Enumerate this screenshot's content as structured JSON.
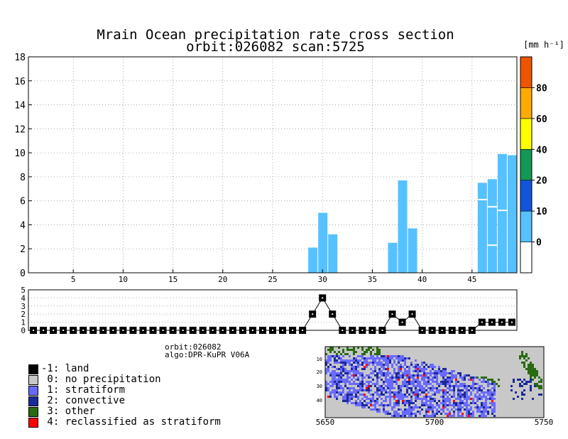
{
  "title": {
    "line1": "Mrain Ocean precipitation rate cross section",
    "line2": "orbit:026082    scan:5725"
  },
  "units_label": "[mm h⁻¹]",
  "chart_data": [
    {
      "id": "rain_cross_section",
      "type": "bar",
      "xlim": [
        1,
        49
      ],
      "ylim": [
        0,
        18
      ],
      "yticks": [
        0,
        2,
        4,
        6,
        8,
        10,
        12,
        14,
        16,
        18
      ],
      "xticks": [
        5,
        10,
        15,
        20,
        25,
        30,
        35,
        40,
        45
      ],
      "grid": true,
      "bars": [
        {
          "ray": 29,
          "height": 2.1
        },
        {
          "ray": 30,
          "height": 5.0
        },
        {
          "ray": 31,
          "height": 3.2
        },
        {
          "ray": 37,
          "height": 2.5
        },
        {
          "ray": 38,
          "height": 7.7
        },
        {
          "ray": 39,
          "height": 3.7
        },
        {
          "ray": 46,
          "height": 7.5
        },
        {
          "ray": 47,
          "height": 7.8
        },
        {
          "ray": 48,
          "height": 9.9
        },
        {
          "ray": 49,
          "height": 9.8
        }
      ],
      "bar_color": "#55c2ff"
    },
    {
      "id": "rain_type_profile",
      "type": "line",
      "ylim": [
        0,
        5
      ],
      "yticks": [
        0,
        1,
        2,
        3,
        4,
        5
      ],
      "rays": [
        1,
        2,
        3,
        4,
        5,
        6,
        7,
        8,
        9,
        10,
        11,
        12,
        13,
        14,
        15,
        16,
        17,
        18,
        19,
        20,
        21,
        22,
        23,
        24,
        25,
        26,
        27,
        28,
        29,
        30,
        31,
        32,
        33,
        34,
        35,
        36,
        37,
        38,
        39,
        40,
        41,
        42,
        43,
        44,
        45,
        46,
        47,
        48,
        49
      ],
      "values": [
        0,
        0,
        0,
        0,
        0,
        0,
        0,
        0,
        0,
        0,
        0,
        0,
        0,
        0,
        0,
        0,
        0,
        0,
        0,
        0,
        0,
        0,
        0,
        0,
        0,
        0,
        0,
        0,
        2,
        4,
        2,
        0,
        0,
        0,
        0,
        0,
        2,
        1,
        2,
        0,
        0,
        0,
        0,
        0,
        0,
        1,
        1,
        1,
        1
      ]
    },
    {
      "id": "color_scale",
      "type": "colorbar",
      "labels": [
        "0",
        "10",
        "20",
        "40",
        "60",
        "80"
      ],
      "colors": [
        "#ffffff",
        "#55c2ff",
        "#1155dd",
        "#119955",
        "#ffff00",
        "#ffaa00",
        "#ee5500"
      ]
    }
  ],
  "info": {
    "orbit": "orbit:026082",
    "algo": "algo:DPR-KuPR V06A"
  },
  "legend": [
    {
      "label": "-1: land",
      "color": "#000000"
    },
    {
      "label": " 0: no precipitation",
      "color": "#c8c8c8"
    },
    {
      "label": " 1: stratiform",
      "color": "#6a6aff"
    },
    {
      "label": " 2: convective",
      "color": "#1b2a9a"
    },
    {
      "label": " 3: other",
      "color": "#2a6a10"
    },
    {
      "label": " 4: reclassified as stratiform",
      "color": "#ff0000"
    }
  ],
  "map": {
    "yticks": [
      "10",
      "20",
      "30",
      "40"
    ],
    "xticks": [
      "5650",
      "5700",
      "5750"
    ]
  }
}
